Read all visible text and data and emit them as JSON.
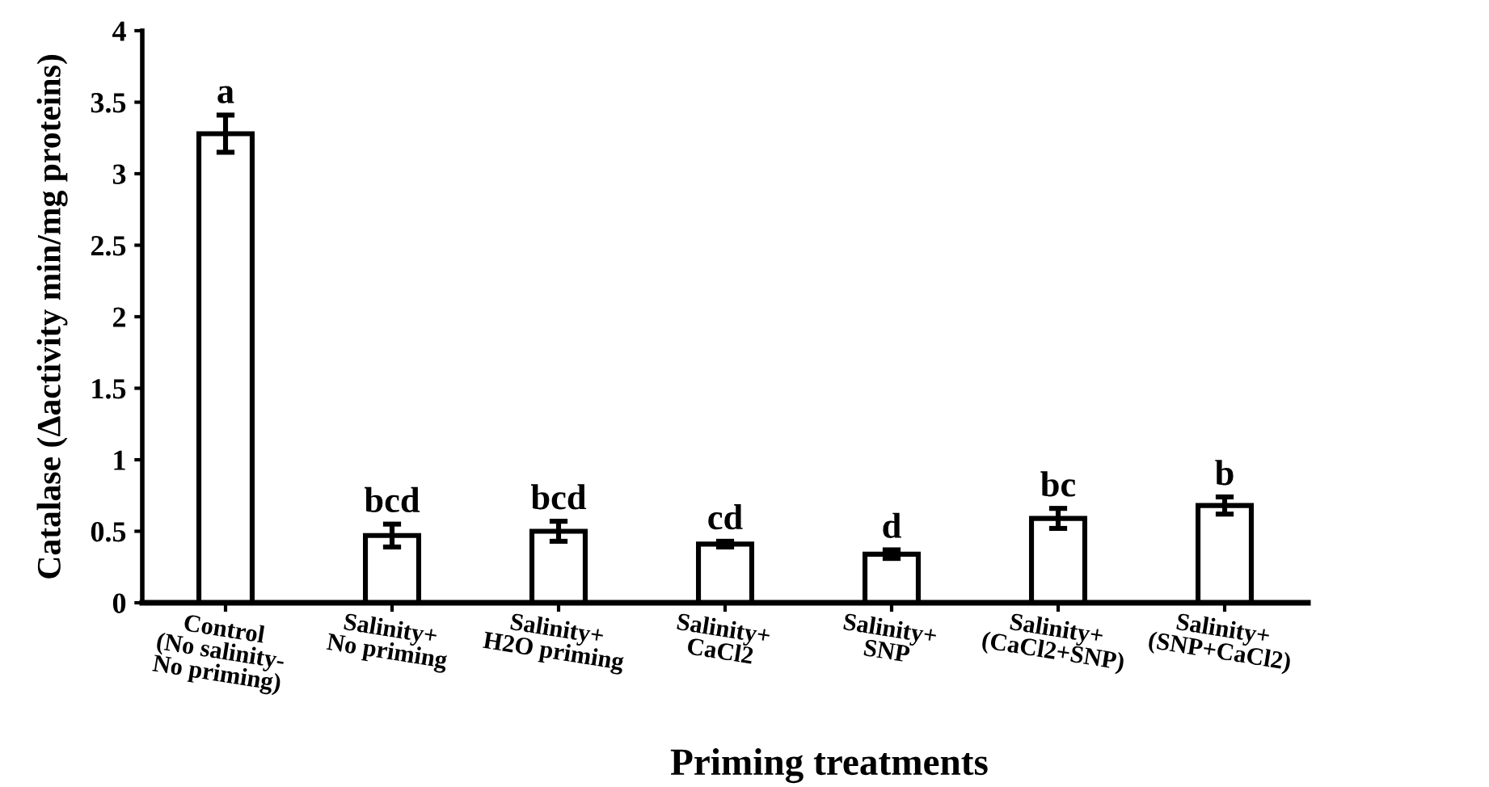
{
  "chart_data": {
    "type": "bar",
    "xlabel": "Priming treatments",
    "ylabel": "Catalase (Δactivity min/mg proteins)",
    "categories": [
      "Control\n(No salinity-\nNo priming)",
      "Salinity+\nNo priming",
      "Salinity+\nH2O priming",
      "Salinity+\nCaCl2",
      "Salinity+\nSNP",
      "Salinity+\n(CaCl2+SNP)",
      "Salinity+\n(SNP+CaCl2)"
    ],
    "values": [
      3.28,
      0.47,
      0.5,
      0.41,
      0.34,
      0.59,
      0.68
    ],
    "errors": [
      0.13,
      0.08,
      0.07,
      0.02,
      0.03,
      0.07,
      0.06
    ],
    "color": "#ffffff",
    "ylim": [
      0,
      4
    ],
    "yticks": [
      0,
      0.5,
      1,
      1.5,
      2,
      2.5,
      3,
      3.5,
      4
    ],
    "grid": false,
    "annotations": [
      "a",
      "bcd",
      "bcd",
      "cd",
      "d",
      "bc",
      "b"
    ]
  }
}
